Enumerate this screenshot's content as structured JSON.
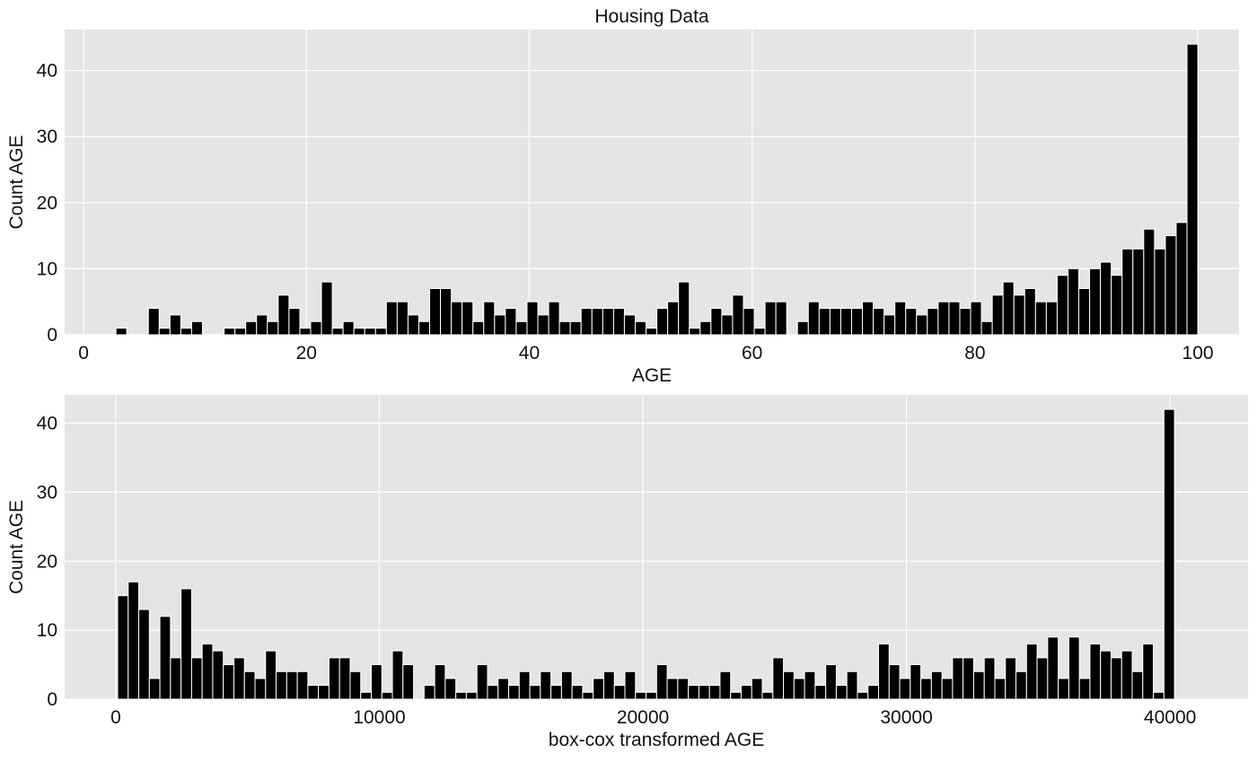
{
  "chart_data": [
    {
      "type": "histogram",
      "title": "Housing Data",
      "xlabel": "AGE",
      "ylabel": "Count AGE",
      "color": "#000000",
      "grid": true,
      "bins": [
        2.9,
        3.871,
        4.842,
        5.813,
        6.784,
        7.755,
        8.726,
        9.697,
        10.668,
        11.639,
        12.61,
        13.581,
        14.552,
        15.523,
        16.494,
        17.465,
        18.436,
        19.407,
        20.378,
        21.349,
        22.32,
        23.291,
        24.262,
        25.233,
        26.204,
        27.175,
        28.146,
        29.117,
        30.088,
        31.059,
        32.03,
        33.001,
        33.972,
        34.943,
        35.914,
        36.885,
        37.856,
        38.827,
        39.798,
        40.769,
        41.74,
        42.711,
        43.682,
        44.653,
        45.624,
        46.595,
        47.566,
        48.537,
        49.508,
        50.479,
        51.45,
        52.421,
        53.392,
        54.363,
        55.334,
        56.305,
        57.276,
        58.247,
        59.218,
        60.189,
        61.16,
        62.131,
        63.102,
        64.073,
        65.044,
        66.015,
        66.986,
        67.957,
        68.928,
        69.899,
        70.87,
        71.841,
        72.812,
        73.783,
        74.754,
        75.725,
        76.696,
        77.667,
        78.638,
        79.609,
        80.58,
        81.551,
        82.522,
        83.493,
        84.464,
        85.435,
        86.406,
        87.377,
        88.348,
        89.319,
        90.29,
        91.261,
        92.232,
        93.203,
        94.174,
        95.145,
        96.116,
        97.087,
        98.058,
        99.029,
        100
      ],
      "values": [
        1,
        0,
        0,
        4,
        1,
        3,
        1,
        2,
        0,
        0,
        1,
        1,
        2,
        3,
        2,
        6,
        4,
        1,
        2,
        8,
        1,
        2,
        1,
        1,
        1,
        5,
        5,
        3,
        2,
        7,
        7,
        5,
        5,
        2,
        5,
        3,
        4,
        2,
        5,
        3,
        5,
        2,
        2,
        4,
        4,
        4,
        4,
        3,
        2,
        1,
        4,
        5,
        8,
        1,
        2,
        4,
        3,
        6,
        4,
        1,
        5,
        5,
        0,
        2,
        5,
        4,
        4,
        4,
        4,
        5,
        4,
        3,
        5,
        4,
        3,
        4,
        5,
        5,
        4,
        5,
        2,
        6,
        8,
        6,
        7,
        5,
        5,
        9,
        10,
        7,
        10,
        11,
        9,
        13,
        13,
        16,
        13,
        15,
        17,
        44
      ],
      "xlim": [
        -1.7,
        103.7
      ],
      "xticks": [
        0,
        20,
        40,
        60,
        80,
        100
      ],
      "ylim": [
        0,
        46.2
      ],
      "yticks": [
        0,
        10,
        20,
        30,
        40
      ]
    },
    {
      "type": "histogram",
      "xlabel": "box-cox transformed AGE",
      "ylabel": "Count AGE",
      "color": "#000000",
      "grid": true,
      "bins": [
        70,
        471,
        872,
        1273,
        1674,
        2075,
        2476,
        2877,
        3278,
        3679,
        4080,
        4481,
        4882,
        5283,
        5684,
        6085,
        6486,
        6887,
        7288,
        7689,
        8090,
        8491,
        8892,
        9293,
        9694,
        10095,
        10496,
        10897,
        11298,
        11699,
        12100,
        12501,
        12902,
        13303,
        13704,
        14105,
        14506,
        14907,
        15308,
        15709,
        16110,
        16511,
        16912,
        17313,
        17714,
        18115,
        18516,
        18917,
        19318,
        19719,
        20120,
        20521,
        20922,
        21323,
        21724,
        22125,
        22526,
        22927,
        23328,
        23729,
        24130,
        24531,
        24932,
        25333,
        25734,
        26135,
        26536,
        26937,
        27338,
        27739,
        28140,
        28541,
        28942,
        29343,
        29744,
        30145,
        30546,
        30947,
        31348,
        31749,
        32150,
        32551,
        32952,
        33353,
        33754,
        34155,
        34556,
        34957,
        35358,
        35759,
        36160,
        36561,
        36962,
        37363,
        37764,
        38165,
        38566,
        38967,
        39368,
        39769,
        40170
      ],
      "values": [
        15,
        17,
        13,
        3,
        12,
        6,
        16,
        6,
        8,
        7,
        5,
        6,
        4,
        3,
        7,
        4,
        4,
        4,
        2,
        2,
        6,
        6,
        4,
        1,
        5,
        1,
        7,
        5,
        0,
        2,
        5,
        3,
        1,
        1,
        5,
        2,
        3,
        2,
        4,
        2,
        4,
        2,
        4,
        2,
        1,
        3,
        4,
        2,
        4,
        1,
        1,
        5,
        3,
        3,
        2,
        2,
        2,
        4,
        1,
        2,
        3,
        1,
        6,
        4,
        3,
        4,
        2,
        5,
        2,
        4,
        1,
        2,
        8,
        5,
        3,
        5,
        3,
        4,
        3,
        6,
        6,
        4,
        6,
        3,
        6,
        4,
        8,
        6,
        9,
        3,
        9,
        3,
        8,
        7,
        6,
        7,
        4,
        8,
        1,
        42
      ],
      "xlim": [
        -1940,
        42960
      ],
      "xticks": [
        0,
        10000,
        20000,
        30000,
        40000
      ],
      "ylim": [
        0,
        44.1
      ],
      "yticks": [
        0,
        10,
        20,
        30,
        40
      ]
    }
  ]
}
